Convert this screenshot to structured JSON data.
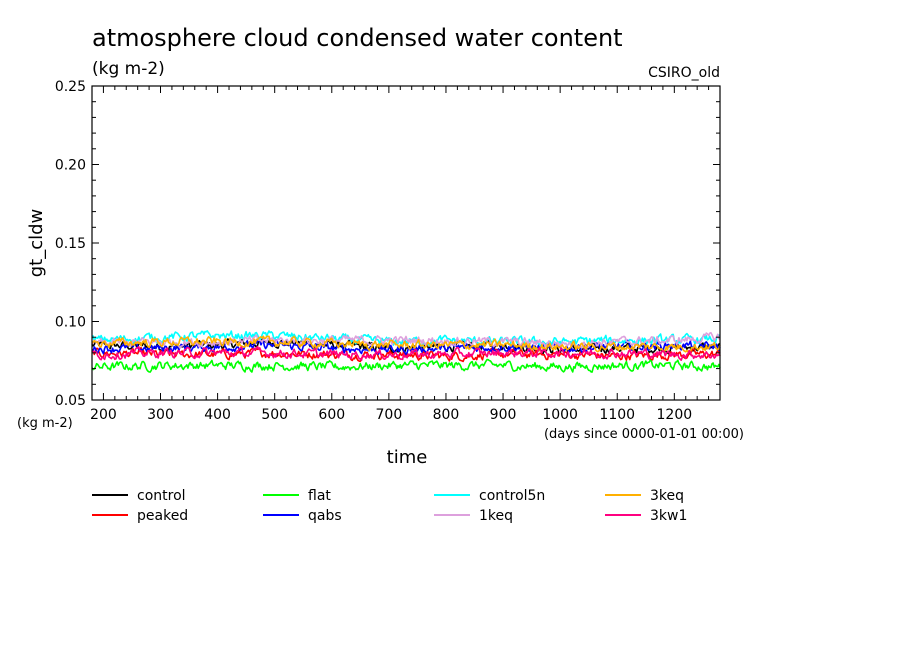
{
  "chart_data": {
    "type": "line",
    "title": "atmosphere cloud condensed water content",
    "subtitle": "(kg m-2)",
    "model": "CSIRO_old",
    "ylabel": "gt_cldw",
    "yunits": "(kg m-2)",
    "xlabel": "time",
    "xunits": "(days since 0000-01-01 00:00)",
    "xlim": [
      180,
      1280
    ],
    "ylim": [
      0.05,
      0.25
    ],
    "x_ticks": [
      200,
      300,
      400,
      500,
      600,
      700,
      800,
      900,
      1000,
      1100,
      1200
    ],
    "y_ticks": [
      "0.05",
      "0.10",
      "0.15",
      "0.20",
      "0.25"
    ],
    "grid": false,
    "legend_position": "bottom",
    "series": [
      {
        "name": "control",
        "color": "#000000",
        "values": [
          [
            180,
            0.085
          ],
          [
            300,
            0.084
          ],
          [
            400,
            0.085
          ],
          [
            500,
            0.087
          ],
          [
            600,
            0.085
          ],
          [
            700,
            0.083
          ],
          [
            800,
            0.084
          ],
          [
            900,
            0.085
          ],
          [
            1000,
            0.082
          ],
          [
            1100,
            0.083
          ],
          [
            1200,
            0.083
          ],
          [
            1280,
            0.084
          ]
        ]
      },
      {
        "name": "peaked",
        "color": "#ff0000",
        "values": [
          [
            180,
            0.08
          ],
          [
            300,
            0.079
          ],
          [
            400,
            0.079
          ],
          [
            500,
            0.08
          ],
          [
            600,
            0.079
          ],
          [
            700,
            0.079
          ],
          [
            800,
            0.078
          ],
          [
            900,
            0.079
          ],
          [
            1000,
            0.079
          ],
          [
            1100,
            0.078
          ],
          [
            1200,
            0.079
          ],
          [
            1280,
            0.079
          ]
        ]
      },
      {
        "name": "flat",
        "color": "#00ff00",
        "values": [
          [
            180,
            0.071
          ],
          [
            300,
            0.072
          ],
          [
            400,
            0.072
          ],
          [
            500,
            0.072
          ],
          [
            600,
            0.071
          ],
          [
            700,
            0.072
          ],
          [
            800,
            0.072
          ],
          [
            900,
            0.072
          ],
          [
            1000,
            0.071
          ],
          [
            1100,
            0.072
          ],
          [
            1200,
            0.072
          ],
          [
            1280,
            0.071
          ]
        ]
      },
      {
        "name": "qabs",
        "color": "#0000ff",
        "values": [
          [
            180,
            0.083
          ],
          [
            300,
            0.083
          ],
          [
            400,
            0.084
          ],
          [
            500,
            0.085
          ],
          [
            600,
            0.083
          ],
          [
            700,
            0.082
          ],
          [
            800,
            0.083
          ],
          [
            900,
            0.084
          ],
          [
            1000,
            0.083
          ],
          [
            1100,
            0.084
          ],
          [
            1200,
            0.085
          ],
          [
            1280,
            0.084
          ]
        ]
      },
      {
        "name": "control5n",
        "color": "#00ffff",
        "values": [
          [
            180,
            0.088
          ],
          [
            300,
            0.09
          ],
          [
            400,
            0.091
          ],
          [
            500,
            0.091
          ],
          [
            600,
            0.089
          ],
          [
            700,
            0.087
          ],
          [
            800,
            0.088
          ],
          [
            900,
            0.087
          ],
          [
            1000,
            0.087
          ],
          [
            1100,
            0.088
          ],
          [
            1200,
            0.088
          ],
          [
            1280,
            0.089
          ]
        ]
      },
      {
        "name": "1keq",
        "color": "#dda0dd",
        "values": [
          [
            180,
            0.086
          ],
          [
            300,
            0.087
          ],
          [
            400,
            0.087
          ],
          [
            500,
            0.088
          ],
          [
            600,
            0.088
          ],
          [
            700,
            0.088
          ],
          [
            800,
            0.088
          ],
          [
            900,
            0.087
          ],
          [
            1000,
            0.086
          ],
          [
            1100,
            0.087
          ],
          [
            1200,
            0.088
          ],
          [
            1280,
            0.09
          ]
        ]
      },
      {
        "name": "3keq",
        "color": "#ffb000",
        "values": [
          [
            180,
            0.086
          ],
          [
            300,
            0.087
          ],
          [
            400,
            0.087
          ],
          [
            500,
            0.087
          ],
          [
            600,
            0.086
          ],
          [
            700,
            0.085
          ],
          [
            800,
            0.085
          ],
          [
            900,
            0.085
          ],
          [
            1000,
            0.084
          ],
          [
            1100,
            0.084
          ],
          [
            1200,
            0.084
          ],
          [
            1280,
            0.084
          ]
        ]
      },
      {
        "name": "3kw1",
        "color": "#ff0080",
        "values": [
          [
            180,
            0.079
          ],
          [
            300,
            0.08
          ],
          [
            400,
            0.08
          ],
          [
            500,
            0.08
          ],
          [
            600,
            0.079
          ],
          [
            700,
            0.079
          ],
          [
            800,
            0.079
          ],
          [
            900,
            0.08
          ],
          [
            1000,
            0.08
          ],
          [
            1100,
            0.08
          ],
          [
            1200,
            0.079
          ],
          [
            1280,
            0.079
          ]
        ]
      }
    ]
  }
}
